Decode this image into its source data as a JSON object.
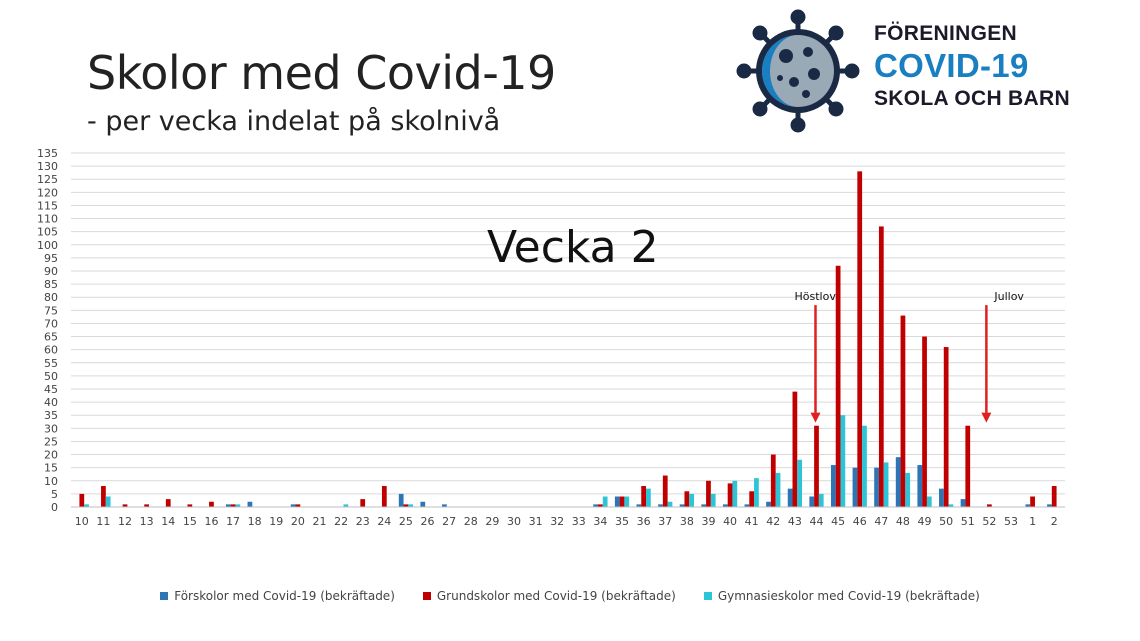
{
  "header": {
    "title": "Skolor med Covid-19",
    "subtitle": "- per vecka indelat på skolnivå"
  },
  "logo": {
    "icon": "virus-icon",
    "line1": "FÖRENINGEN",
    "line2": "COVID-19",
    "line3": "SKOLA OCH BARN"
  },
  "overlay_label": "Vecka 2",
  "colors": {
    "forskolor": "#2e75b6",
    "grundskolor": "#c00000",
    "gymnasieskolor": "#2ec4d6",
    "arrow": "#e02020",
    "grid": "#d9d9d9"
  },
  "chart_data": {
    "type": "bar",
    "ylim": [
      0,
      135
    ],
    "ystep": 5,
    "grid": true,
    "legend_position": "bottom",
    "categories": [
      "10",
      "11",
      "12",
      "13",
      "14",
      "15",
      "16",
      "17",
      "18",
      "19",
      "20",
      "21",
      "22",
      "23",
      "24",
      "25",
      "26",
      "27",
      "28",
      "29",
      "30",
      "31",
      "32",
      "33",
      "34",
      "35",
      "36",
      "37",
      "38",
      "39",
      "40",
      "41",
      "42",
      "43",
      "44",
      "45",
      "46",
      "47",
      "48",
      "49",
      "50",
      "51",
      "52",
      "53",
      "1",
      "2"
    ],
    "series": [
      {
        "name": "Förskolor med Covid-19 (bekräftade)",
        "values": [
          0,
          0,
          0,
          0,
          0,
          0,
          0,
          1,
          2,
          0,
          1,
          0,
          0,
          0,
          0,
          5,
          2,
          1,
          0,
          0,
          0,
          0,
          0,
          0,
          1,
          4,
          1,
          1,
          1,
          1,
          1,
          1,
          2,
          7,
          4,
          16,
          15,
          15,
          19,
          16,
          7,
          3,
          0,
          0,
          1,
          1
        ]
      },
      {
        "name": "Grundskolor med Covid-19 (bekräftade)",
        "values": [
          5,
          8,
          1,
          1,
          3,
          1,
          2,
          1,
          0,
          0,
          1,
          0,
          0,
          3,
          8,
          1,
          0,
          0,
          0,
          0,
          0,
          0,
          0,
          0,
          1,
          4,
          8,
          12,
          6,
          10,
          9,
          6,
          20,
          44,
          31,
          92,
          128,
          107,
          73,
          65,
          61,
          31,
          1,
          0,
          4,
          8
        ]
      },
      {
        "name": "Gymnasieskolor med Covid-19 (bekräftade)",
        "values": [
          1,
          4,
          0,
          0,
          0,
          0,
          0,
          1,
          0,
          0,
          0,
          0,
          1,
          0,
          0,
          1,
          0,
          0,
          0,
          0,
          0,
          0,
          0,
          0,
          4,
          4,
          7,
          2,
          5,
          5,
          10,
          11,
          13,
          18,
          5,
          35,
          31,
          17,
          13,
          4,
          1,
          0,
          0,
          0,
          0,
          0
        ]
      }
    ],
    "annotations": [
      {
        "text": "Höstlov",
        "week": "44"
      },
      {
        "text": "Jullov",
        "week": "52"
      }
    ]
  }
}
